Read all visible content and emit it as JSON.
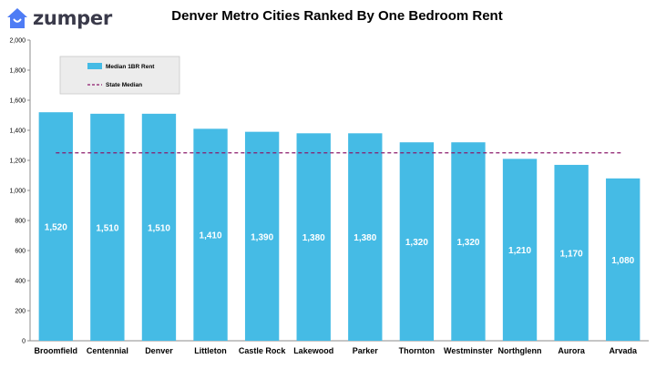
{
  "brand": {
    "name": "zumper",
    "logo_icon": "house-logo-icon",
    "logo_color": "#4e7cf5"
  },
  "chart_data": {
    "type": "bar",
    "title": "Denver Metro Cities Ranked By One Bedroom Rent",
    "xlabel": "",
    "ylabel": "",
    "categories": [
      "Broomfield",
      "Centennial",
      "Denver",
      "Littleton",
      "Castle Rock",
      "Lakewood",
      "Parker",
      "Thornton",
      "Westminster",
      "Northglenn",
      "Aurora",
      "Arvada"
    ],
    "series": [
      {
        "name": "Median 1BR Rent",
        "values": [
          1520,
          1510,
          1510,
          1410,
          1390,
          1380,
          1380,
          1320,
          1320,
          1210,
          1170,
          1080
        ],
        "labels": [
          "1,520",
          "1,510",
          "1,510",
          "1,410",
          "1,390",
          "1,380",
          "1,380",
          "1,320",
          "1,320",
          "1,210",
          "1,170",
          "1,080"
        ],
        "color": "#45bbe5"
      },
      {
        "name": "State Median",
        "type": "dashed-line",
        "value": 1250,
        "color": "#8b1a6b"
      }
    ],
    "ylim": [
      0,
      2000
    ],
    "yticks": [
      0,
      200,
      400,
      600,
      800,
      1000,
      1200,
      1400,
      1600,
      1800,
      2000
    ],
    "ytick_labels": [
      "0",
      "200",
      "400",
      "600",
      "800",
      "1,000",
      "1,200",
      "1,400",
      "1,600",
      "1,800",
      "2,000"
    ],
    "grid": false,
    "legend_position": "top-left",
    "legend_background": "#ececec"
  }
}
